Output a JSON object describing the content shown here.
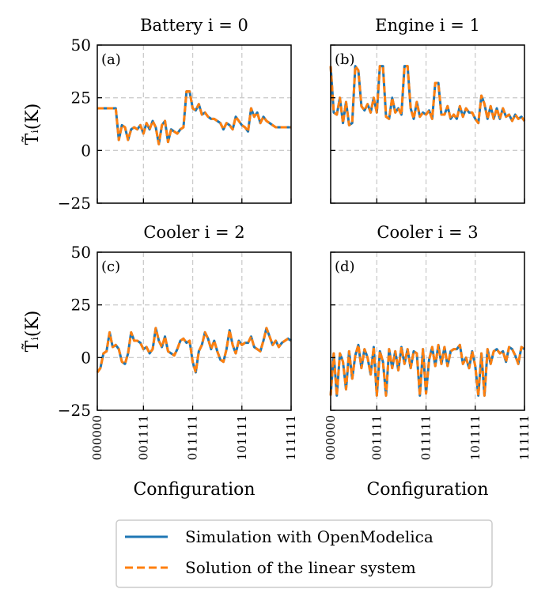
{
  "figure": {
    "ylabel": "T̃ᵢ(K)",
    "xlabel": "Configuration",
    "y_ticks": [
      "50",
      "25",
      "0",
      "−25"
    ],
    "x_ticks": [
      "000000",
      "001111",
      "011111",
      "101111",
      "111111"
    ]
  },
  "legend": {
    "items": [
      {
        "label": "Simulation with OpenModelica",
        "color": "#1f77b4",
        "style": "solid"
      },
      {
        "label": "Solution of the linear system",
        "color": "#ff7f0e",
        "style": "dashed"
      }
    ]
  },
  "chart_data": [
    {
      "type": "line",
      "panel_label": "(a)",
      "title": "Battery i = 0",
      "xlabel": "",
      "ylabel": "T̃ᵢ(K)",
      "xlim": [
        0,
        63
      ],
      "ylim": [
        -25,
        50
      ],
      "x_tick_positions": [
        0,
        15,
        31,
        47,
        63
      ],
      "x_tick_labels": [
        "000000",
        "001111",
        "011111",
        "101111",
        "111111"
      ],
      "grid": true,
      "series": [
        {
          "name": "Simulation with OpenModelica",
          "values": [
            20,
            20,
            20,
            20,
            20,
            20,
            20,
            5,
            12,
            11,
            5,
            10,
            11,
            10,
            12,
            8,
            13,
            10,
            14,
            11,
            3,
            12,
            14,
            4,
            10,
            9,
            8,
            10,
            11,
            28,
            28,
            20,
            19,
            22,
            17,
            18,
            16,
            15,
            15,
            14,
            13,
            10,
            13,
            12,
            10,
            16,
            14,
            12,
            11,
            9,
            20,
            16,
            18,
            13,
            16,
            14,
            13,
            12,
            11,
            11,
            11,
            11,
            11,
            11
          ]
        },
        {
          "name": "Solution of the linear system",
          "values": [
            20,
            20,
            20,
            20,
            20,
            20,
            20,
            5,
            12,
            11,
            5,
            10,
            11,
            10,
            12,
            8,
            13,
            10,
            14,
            11,
            3,
            12,
            14,
            4,
            10,
            9,
            8,
            10,
            11,
            28,
            28,
            20,
            19,
            22,
            17,
            18,
            16,
            15,
            15,
            14,
            13,
            10,
            13,
            12,
            10,
            16,
            14,
            12,
            11,
            9,
            20,
            16,
            18,
            13,
            16,
            14,
            13,
            12,
            11,
            11,
            11,
            11,
            11,
            11
          ]
        }
      ]
    },
    {
      "type": "line",
      "panel_label": "(b)",
      "title": "Engine i = 1",
      "xlabel": "",
      "ylabel": "",
      "xlim": [
        0,
        63
      ],
      "ylim": [
        -25,
        50
      ],
      "x_tick_positions": [
        0,
        15,
        31,
        47,
        63
      ],
      "x_tick_labels": [
        "000000",
        "001111",
        "011111",
        "101111",
        "111111"
      ],
      "grid": true,
      "series": [
        {
          "name": "Simulation with OpenModelica",
          "values": [
            40,
            18,
            17,
            25,
            13,
            23,
            12,
            13,
            40,
            38,
            21,
            19,
            22,
            18,
            25,
            18,
            40,
            40,
            16,
            15,
            25,
            18,
            20,
            17,
            40,
            40,
            20,
            15,
            23,
            16,
            18,
            17,
            19,
            15,
            32,
            32,
            17,
            17,
            21,
            15,
            17,
            15,
            21,
            16,
            20,
            18,
            18,
            15,
            13,
            26,
            22,
            15,
            21,
            15,
            20,
            15,
            20,
            16,
            17,
            14,
            17,
            15,
            16,
            14
          ]
        },
        {
          "name": "Solution of the linear system",
          "values": [
            40,
            18,
            17,
            25,
            13,
            23,
            12,
            13,
            40,
            38,
            21,
            19,
            22,
            18,
            25,
            18,
            40,
            40,
            16,
            15,
            25,
            18,
            20,
            17,
            40,
            40,
            20,
            15,
            23,
            16,
            18,
            17,
            19,
            15,
            32,
            32,
            17,
            17,
            21,
            15,
            17,
            15,
            21,
            16,
            20,
            18,
            18,
            15,
            13,
            26,
            22,
            15,
            21,
            15,
            20,
            15,
            20,
            16,
            17,
            14,
            17,
            15,
            16,
            14
          ]
        }
      ]
    },
    {
      "type": "line",
      "panel_label": "(c)",
      "title": "Cooler i = 2",
      "xlabel": "Configuration",
      "ylabel": "T̃ᵢ(K)",
      "xlim": [
        0,
        63
      ],
      "ylim": [
        -25,
        50
      ],
      "x_tick_positions": [
        0,
        15,
        31,
        47,
        63
      ],
      "x_tick_labels": [
        "000000",
        "001111",
        "011111",
        "101111",
        "111111"
      ],
      "grid": true,
      "series": [
        {
          "name": "Simulation with OpenModelica",
          "values": [
            -7,
            -5,
            2,
            3,
            12,
            5,
            6,
            4,
            -2,
            -3,
            2,
            12,
            8,
            8,
            7,
            4,
            5,
            2,
            4,
            14,
            8,
            5,
            10,
            3,
            2,
            1,
            4,
            8,
            9,
            7,
            8,
            -2,
            -7,
            3,
            6,
            12,
            9,
            4,
            8,
            3,
            -1,
            -2,
            4,
            13,
            6,
            2,
            8,
            6,
            7,
            7,
            10,
            5,
            4,
            3,
            8,
            14,
            10,
            6,
            8,
            5,
            7,
            8,
            9,
            8
          ]
        },
        {
          "name": "Solution of the linear system",
          "values": [
            -7,
            -5,
            2,
            3,
            12,
            5,
            6,
            4,
            -2,
            -3,
            2,
            12,
            8,
            8,
            7,
            4,
            5,
            2,
            4,
            14,
            8,
            5,
            10,
            3,
            2,
            1,
            4,
            8,
            9,
            7,
            8,
            -2,
            -7,
            3,
            6,
            12,
            9,
            4,
            8,
            3,
            -1,
            -2,
            4,
            13,
            6,
            2,
            8,
            6,
            7,
            7,
            10,
            5,
            4,
            3,
            8,
            14,
            10,
            6,
            8,
            5,
            7,
            8,
            9,
            8
          ]
        }
      ]
    },
    {
      "type": "line",
      "panel_label": "(d)",
      "title": "Cooler i = 3",
      "xlabel": "Configuration",
      "ylabel": "",
      "xlim": [
        0,
        63
      ],
      "ylim": [
        -25,
        50
      ],
      "x_tick_positions": [
        0,
        15,
        31,
        47,
        63
      ],
      "x_tick_labels": [
        "000000",
        "001111",
        "011111",
        "101111",
        "111111"
      ],
      "grid": true,
      "series": [
        {
          "name": "Simulation with OpenModelica",
          "values": [
            -18,
            2,
            -18,
            2,
            -2,
            -15,
            3,
            -10,
            1,
            6,
            -5,
            4,
            0,
            -8,
            5,
            -18,
            3,
            -2,
            -18,
            4,
            -5,
            3,
            -6,
            5,
            -3,
            4,
            -5,
            3,
            2,
            -18,
            4,
            -17,
            -1,
            5,
            -4,
            6,
            -3,
            5,
            -4,
            3,
            4,
            4,
            6,
            -3,
            0,
            -5,
            3,
            -4,
            -18,
            2,
            -18,
            4,
            -3,
            3,
            4,
            2,
            3,
            -2,
            5,
            4,
            1,
            -3,
            5,
            4
          ]
        },
        {
          "name": "Solution of the linear system",
          "values": [
            -18,
            2,
            -18,
            2,
            -2,
            -15,
            3,
            -10,
            1,
            6,
            -5,
            4,
            0,
            -8,
            5,
            -18,
            3,
            -2,
            -18,
            4,
            -5,
            3,
            -6,
            5,
            -3,
            4,
            -5,
            3,
            2,
            -18,
            4,
            -17,
            -1,
            5,
            -4,
            6,
            -3,
            5,
            -4,
            3,
            4,
            4,
            6,
            -3,
            0,
            -5,
            3,
            -4,
            -18,
            2,
            -18,
            4,
            -3,
            3,
            4,
            2,
            3,
            -2,
            5,
            4,
            1,
            -3,
            5,
            4
          ]
        }
      ]
    }
  ]
}
